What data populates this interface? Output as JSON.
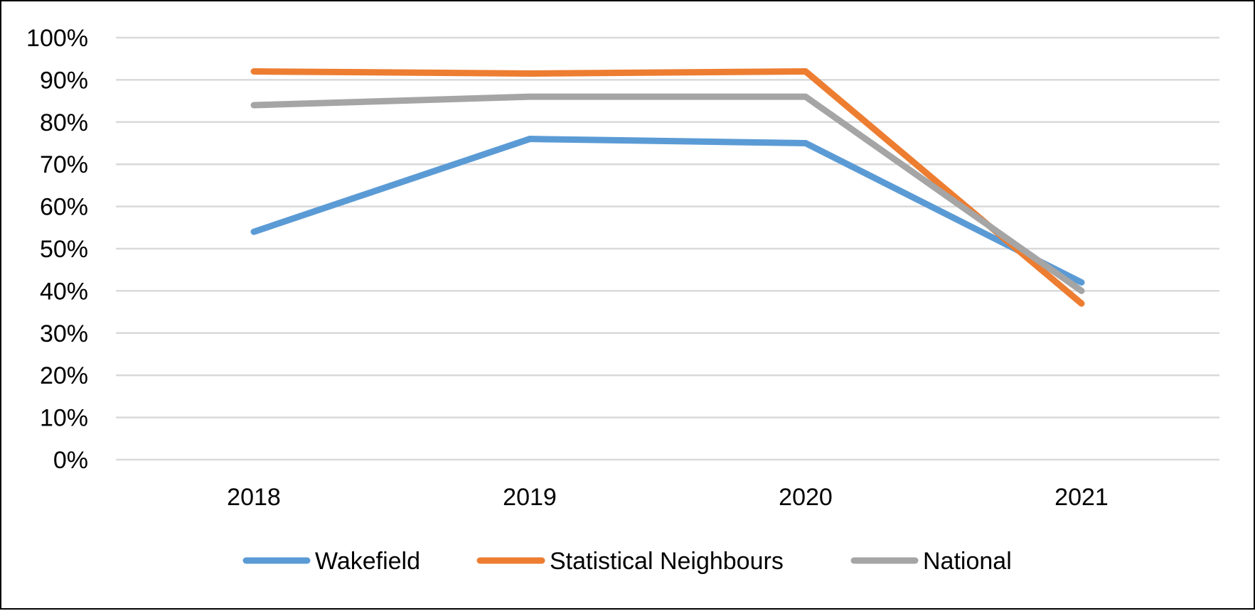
{
  "chart_data": {
    "type": "line",
    "categories": [
      "2018",
      "2019",
      "2020",
      "2021"
    ],
    "series": [
      {
        "name": "Wakefield",
        "color": "#5b9bd5",
        "values": [
          54,
          76,
          75,
          42
        ]
      },
      {
        "name": "Statistical Neighbours",
        "color": "#ed7d31",
        "values": [
          92,
          91.5,
          92,
          37
        ]
      },
      {
        "name": "National",
        "color": "#a5a5a5",
        "values": [
          84,
          86,
          86,
          40
        ]
      }
    ],
    "ylim": [
      0,
      100
    ],
    "yticks": [
      "0%",
      "10%",
      "20%",
      "30%",
      "40%",
      "50%",
      "60%",
      "70%",
      "80%",
      "90%",
      "100%"
    ],
    "grid": true,
    "legend": "bottom"
  }
}
